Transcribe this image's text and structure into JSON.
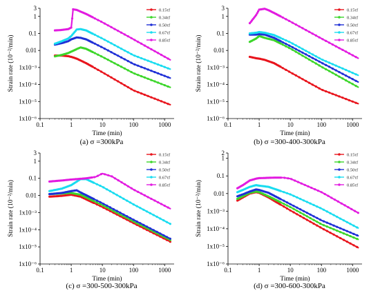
{
  "figure": {
    "colors": {
      "s015": "#e8141c",
      "s034": "#3cd62a",
      "s050": "#1f2fd6",
      "s067": "#19dcf0",
      "s085": "#e21be0"
    },
    "legend_labels": [
      "0.15τf",
      "0.34τf",
      "0.50τf",
      "0.67τf",
      "0.85τf"
    ],
    "panels": [
      {
        "caption": "(a) σ =300kPa",
        "ylabel": "Strain rate  (10⁻²/min)",
        "xlabel": "Time  (min)"
      },
      {
        "caption": "(b) σ =300-400-300kPa",
        "ylabel": "Strain rate  (10⁻²/min)",
        "xlabel": "Time  (min)"
      },
      {
        "caption": "(c) σ =300-500-300kPa",
        "ylabel": "Strain rate  (10⁻²/min)",
        "xlabel": "Time  (min)"
      },
      {
        "caption": "(d) σ =300-600-300kPa",
        "ylabel": "Strain rate  (10⁻²/min)",
        "xlabel": "Time  (min)"
      }
    ]
  },
  "chart_data": [
    {
      "type": "line",
      "title": "(a) σ =300kPa",
      "xlabel": "Time  (min)",
      "ylabel": "Strain rate  (10⁻²/min)",
      "xscale": "log",
      "yscale": "log",
      "xlim": [
        0.1,
        2000
      ],
      "ylim": [
        1e-06,
        3
      ],
      "xticks": [
        "0.1",
        "1",
        "10",
        "100",
        "1000"
      ],
      "yticks": [
        "1x10⁻⁶",
        "1x10⁻⁵",
        "1x10⁻⁴",
        "1x10⁻³",
        "0.01",
        "0.1",
        "1",
        "3"
      ],
      "legend_position": "top-right",
      "series": [
        {
          "name": "0.15τf",
          "color": "#e8141c",
          "points": [
            [
              0.3,
              0.005
            ],
            [
              0.5,
              0.005
            ],
            [
              0.8,
              0.0046
            ],
            [
              1.0,
              0.0042
            ],
            [
              1.5,
              0.0033
            ],
            [
              3,
              0.0018
            ],
            [
              10,
              0.00052
            ],
            [
              100,
              4.5e-05
            ],
            [
              1500,
              6.5e-06
            ]
          ]
        },
        {
          "name": "0.34τf",
          "color": "#3cd62a",
          "points": [
            [
              0.3,
              0.0045
            ],
            [
              0.5,
              0.0055
            ],
            [
              0.8,
              0.007
            ],
            [
              1.0,
              0.0085
            ],
            [
              1.5,
              0.012
            ],
            [
              2,
              0.015
            ],
            [
              3,
              0.0125
            ],
            [
              10,
              0.0042
            ],
            [
              100,
              0.00046
            ],
            [
              1500,
              6.8e-05
            ]
          ]
        },
        {
          "name": "0.50τf",
          "color": "#1f2fd6",
          "points": [
            [
              0.3,
              0.022
            ],
            [
              0.5,
              0.027
            ],
            [
              0.8,
              0.035
            ],
            [
              1.0,
              0.045
            ],
            [
              1.5,
              0.058
            ],
            [
              2,
              0.055
            ],
            [
              3,
              0.045
            ],
            [
              10,
              0.015
            ],
            [
              100,
              0.0016
            ],
            [
              1500,
              0.00024
            ]
          ]
        },
        {
          "name": "0.67τf",
          "color": "#19dcf0",
          "points": [
            [
              0.3,
              0.025
            ],
            [
              0.5,
              0.035
            ],
            [
              0.8,
              0.05
            ],
            [
              1.0,
              0.07
            ],
            [
              1.5,
              0.17
            ],
            [
              2,
              0.18
            ],
            [
              3,
              0.15
            ],
            [
              10,
              0.05
            ],
            [
              100,
              0.0052
            ],
            [
              1500,
              0.0008
            ]
          ]
        },
        {
          "name": "0.85τf",
          "color": "#e21be0",
          "points": [
            [
              0.3,
              0.15
            ],
            [
              0.5,
              0.16
            ],
            [
              0.8,
              0.18
            ],
            [
              1.0,
              0.22
            ],
            [
              1.15,
              2.6
            ],
            [
              1.5,
              2.4
            ],
            [
              3,
              1.4
            ],
            [
              10,
              0.45
            ],
            [
              100,
              0.045
            ],
            [
              1500,
              0.0028
            ]
          ]
        }
      ]
    },
    {
      "type": "line",
      "title": "(b) σ =300-400-300kPa",
      "xlabel": "Time  (min)",
      "ylabel": "Strain rate  (10⁻²/min)",
      "xscale": "log",
      "yscale": "log",
      "xlim": [
        0.1,
        2000
      ],
      "ylim": [
        1e-06,
        3
      ],
      "xticks": [
        "0.1",
        "1",
        "10",
        "100",
        "1000"
      ],
      "yticks": [
        "1x10⁻⁶",
        "1x10⁻⁵",
        "1x10⁻⁴",
        "1x10⁻³",
        "0.01",
        "0.1",
        "1",
        "3"
      ],
      "legend_position": "top-right",
      "series": [
        {
          "name": "0.15τf",
          "color": "#e8141c",
          "points": [
            [
              0.5,
              0.0042
            ],
            [
              0.8,
              0.0035
            ],
            [
              1.0,
              0.0033
            ],
            [
              1.5,
              0.0028
            ],
            [
              3,
              0.0018
            ],
            [
              10,
              0.00052
            ],
            [
              100,
              5e-05
            ],
            [
              1500,
              7.5e-06
            ]
          ]
        },
        {
          "name": "0.34τf",
          "color": "#3cd62a",
          "points": [
            [
              0.5,
              0.032
            ],
            [
              0.8,
              0.05
            ],
            [
              1.0,
              0.07
            ],
            [
              1.5,
              0.055
            ],
            [
              3,
              0.04
            ],
            [
              10,
              0.013
            ],
            [
              100,
              0.0011
            ],
            [
              1500,
              7e-05
            ]
          ]
        },
        {
          "name": "0.50τf",
          "color": "#1f2fd6",
          "points": [
            [
              0.5,
              0.085
            ],
            [
              0.8,
              0.085
            ],
            [
              1.0,
              0.09
            ],
            [
              1.5,
              0.085
            ],
            [
              3,
              0.055
            ],
            [
              10,
              0.018
            ],
            [
              100,
              0.0019
            ],
            [
              1500,
              0.00014
            ]
          ]
        },
        {
          "name": "0.67τf",
          "color": "#19dcf0",
          "points": [
            [
              0.5,
              0.1
            ],
            [
              0.8,
              0.11
            ],
            [
              1.0,
              0.12
            ],
            [
              1.5,
              0.11
            ],
            [
              3,
              0.08
            ],
            [
              10,
              0.03
            ],
            [
              100,
              0.003
            ],
            [
              1500,
              0.00035
            ]
          ]
        },
        {
          "name": "0.85τf",
          "color": "#e21be0",
          "points": [
            [
              0.5,
              0.4
            ],
            [
              0.8,
              1.2
            ],
            [
              1.0,
              2.5
            ],
            [
              1.5,
              2.8
            ],
            [
              2,
              2.3
            ],
            [
              3,
              1.6
            ],
            [
              10,
              0.5
            ],
            [
              100,
              0.05
            ],
            [
              1500,
              0.0035
            ]
          ]
        }
      ]
    },
    {
      "type": "line",
      "title": "(c) σ =300-500-300kPa",
      "xlabel": "Time  (min)",
      "ylabel": "Strain rate  (10⁻²/min)",
      "xscale": "log",
      "yscale": "log",
      "xlim": [
        0.1,
        2000
      ],
      "ylim": [
        1e-06,
        3
      ],
      "xticks": [
        "0.1",
        "1",
        "10",
        "100",
        "1000"
      ],
      "yticks": [
        "1x10⁻⁶",
        "1x10⁻⁵",
        "1x10⁻⁴",
        "1x10⁻³",
        "0.01",
        "0.1",
        "1",
        "3"
      ],
      "legend_position": "top-right",
      "series": [
        {
          "name": "0.15τf",
          "color": "#e8141c",
          "points": [
            [
              0.2,
              0.0085
            ],
            [
              0.5,
              0.0095
            ],
            [
              1.0,
              0.011
            ],
            [
              2,
              0.0085
            ],
            [
              10,
              0.0021
            ],
            [
              100,
              0.00024
            ],
            [
              1500,
              2e-05
            ]
          ]
        },
        {
          "name": "0.34τf",
          "color": "#3cd62a",
          "points": [
            [
              0.2,
              0.012
            ],
            [
              0.5,
              0.013
            ],
            [
              1.0,
              0.014
            ],
            [
              2,
              0.011
            ],
            [
              10,
              0.0027
            ],
            [
              100,
              0.0003
            ],
            [
              1500,
              2.5e-05
            ]
          ]
        },
        {
          "name": "0.50τf",
          "color": "#1f2fd6",
          "points": [
            [
              0.2,
              0.012
            ],
            [
              0.5,
              0.014
            ],
            [
              1.0,
              0.018
            ],
            [
              1.5,
              0.02
            ],
            [
              2,
              0.015
            ],
            [
              10,
              0.0035
            ],
            [
              100,
              0.00038
            ],
            [
              1500,
              3e-05
            ]
          ]
        },
        {
          "name": "0.67τf",
          "color": "#19dcf0",
          "points": [
            [
              0.2,
              0.018
            ],
            [
              0.5,
              0.025
            ],
            [
              1.0,
              0.04
            ],
            [
              2,
              0.09
            ],
            [
              3,
              0.09
            ],
            [
              10,
              0.032
            ],
            [
              100,
              0.003
            ],
            [
              1500,
              0.00022
            ]
          ]
        },
        {
          "name": "0.85τf",
          "color": "#e21be0",
          "points": [
            [
              0.2,
              0.065
            ],
            [
              0.5,
              0.075
            ],
            [
              1.0,
              0.085
            ],
            [
              3,
              0.1
            ],
            [
              6,
              0.12
            ],
            [
              10,
              0.19
            ],
            [
              20,
              0.13
            ],
            [
              100,
              0.022
            ],
            [
              1500,
              0.0017
            ]
          ]
        }
      ]
    },
    {
      "type": "line",
      "title": "(d) σ =300-600-300kPa",
      "xlabel": "Time  (min)",
      "ylabel": "Strain rate  (10⁻²/min)",
      "xscale": "log",
      "yscale": "log",
      "xlim": [
        0.1,
        2000
      ],
      "ylim": [
        1e-06,
        2
      ],
      "xticks": [
        "0.1",
        "1",
        "10",
        "100",
        "1000"
      ],
      "yticks": [
        "1x10⁻⁶",
        "1x10⁻⁵",
        "1x10⁻⁴",
        "1x10⁻³",
        "0.01",
        "0.1",
        "1",
        "2"
      ],
      "legend_position": "top-right",
      "series": [
        {
          "name": "0.15τf",
          "color": "#e8141c",
          "points": [
            [
              0.2,
              0.004
            ],
            [
              0.3,
              0.006
            ],
            [
              0.5,
              0.01
            ],
            [
              0.8,
              0.012
            ],
            [
              1.0,
              0.011
            ],
            [
              2,
              0.006
            ],
            [
              10,
              0.0011
            ],
            [
              100,
              0.00011
            ],
            [
              1500,
              8.5e-06
            ]
          ]
        },
        {
          "name": "0.34τf",
          "color": "#3cd62a",
          "points": [
            [
              0.2,
              0.005
            ],
            [
              0.3,
              0.007
            ],
            [
              0.5,
              0.011
            ],
            [
              0.8,
              0.013
            ],
            [
              1.0,
              0.012
            ],
            [
              2,
              0.007
            ],
            [
              10,
              0.0017
            ],
            [
              100,
              0.00018
            ],
            [
              1500,
              2.5e-05
            ]
          ]
        },
        {
          "name": "0.50τf",
          "color": "#1f2fd6",
          "points": [
            [
              0.2,
              0.007
            ],
            [
              0.3,
              0.009
            ],
            [
              0.5,
              0.013
            ],
            [
              0.8,
              0.017
            ],
            [
              1.0,
              0.016
            ],
            [
              2,
              0.011
            ],
            [
              10,
              0.0025
            ],
            [
              100,
              0.0003
            ],
            [
              1500,
              4e-05
            ]
          ]
        },
        {
          "name": "0.67τf",
          "color": "#19dcf0",
          "points": [
            [
              0.2,
              0.012
            ],
            [
              0.3,
              0.016
            ],
            [
              0.5,
              0.024
            ],
            [
              0.8,
              0.03
            ],
            [
              1.0,
              0.028
            ],
            [
              2,
              0.024
            ],
            [
              10,
              0.009
            ],
            [
              100,
              0.0014
            ],
            [
              1500,
              0.00011
            ]
          ]
        },
        {
          "name": "0.85τf",
          "color": "#e21be0",
          "points": [
            [
              0.2,
              0.02
            ],
            [
              0.3,
              0.03
            ],
            [
              0.5,
              0.055
            ],
            [
              0.8,
              0.07
            ],
            [
              1.0,
              0.075
            ],
            [
              3,
              0.08
            ],
            [
              6,
              0.08
            ],
            [
              10,
              0.07
            ],
            [
              100,
              0.012
            ],
            [
              1500,
              0.0008
            ]
          ]
        }
      ]
    }
  ]
}
